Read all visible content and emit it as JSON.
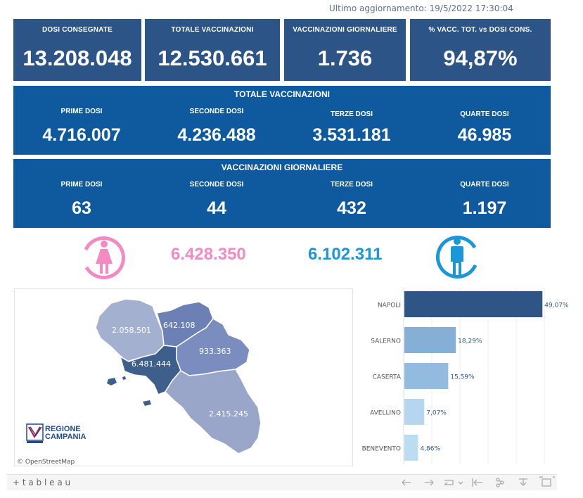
{
  "update": {
    "text": "Ultimo aggiornamento: 19/5/2022 17:30:04"
  },
  "kpis": [
    {
      "label": "DOSI  CONSEGNATE",
      "value": "13.208.048"
    },
    {
      "label": "TOTALE VACCINAZIONI",
      "value": "12.530.661"
    },
    {
      "label": "VACCINAZIONI GIORNALIERE",
      "value": "1.736"
    },
    {
      "label": "% VACC. TOT. vs DOSI CONS.",
      "value": "94,87%"
    }
  ],
  "totale": {
    "title": "TOTALE VACCINAZIONI",
    "cells": [
      {
        "label": "PRIME DOSI",
        "value": "4.716.007"
      },
      {
        "label": "SECONDE DOSI",
        "value": "4.236.488"
      },
      {
        "label": "TERZE DOSI",
        "value": "3.531.181"
      },
      {
        "label": "QUARTE DOSI",
        "value": "46.985"
      }
    ]
  },
  "giornaliere": {
    "title": "VACCINAZIONI GIORNALIERE",
    "cells": [
      {
        "label": "PRIME DOSI",
        "value": "63"
      },
      {
        "label": "SECONDE DOSI",
        "value": "44"
      },
      {
        "label": "TERZE DOSI",
        "value": "432"
      },
      {
        "label": "QUARTE DOSI",
        "value": "1.197"
      }
    ]
  },
  "gender": {
    "female": {
      "value": "6.428.350",
      "color": "#f58ac3",
      "icon": "female-icon"
    },
    "male": {
      "value": "6.102.311",
      "color": "#1a97d8",
      "icon": "male-icon"
    }
  },
  "map": {
    "provinces": [
      {
        "name": "caserta",
        "value": "2.058.501",
        "color": "#a4b0cf"
      },
      {
        "name": "benevento",
        "value": "642.108",
        "color": "#6c80b5"
      },
      {
        "name": "avellino",
        "value": "933.363",
        "color": "#7a8dbe"
      },
      {
        "name": "napoli",
        "value": "6.481.444",
        "color": "#3e5e8b"
      },
      {
        "name": "salerno",
        "value": "2.415.245",
        "color": "#9aa6c9"
      }
    ],
    "logo_line1": "REGIONE",
    "logo_line2": "CAMPANIA",
    "attribution": "© OpenStreetMap"
  },
  "chart_data": {
    "type": "bar",
    "orientation": "horizontal",
    "categories": [
      "NAPOLI",
      "SALERNO",
      "CASERTA",
      "AVELLINO",
      "BENEVENTO"
    ],
    "values": [
      49.07,
      18.29,
      15.59,
      7.07,
      4.86
    ],
    "value_labels": [
      "49,07%",
      "18,29%",
      "15,59%",
      "7,07%",
      "4,86%"
    ],
    "colors": [
      "#2e5586",
      "#86afd6",
      "#93bbe0",
      "#b5d6ee",
      "#bcdcf1"
    ],
    "xlim": [
      0,
      55
    ]
  },
  "toolbar": {
    "brand": "+ t a b l e a u"
  }
}
